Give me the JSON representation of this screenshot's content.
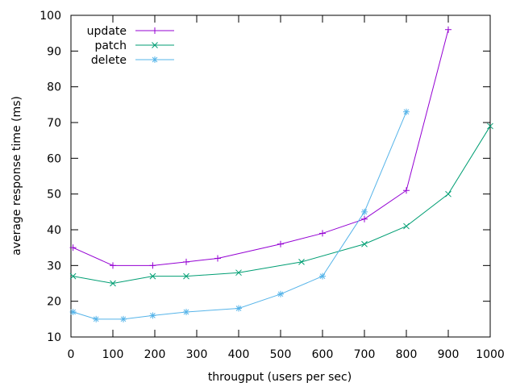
{
  "chart_data": {
    "type": "line",
    "title": "",
    "xlabel": "througput (users per sec)",
    "ylabel": "average response time (ms)",
    "xlim": [
      0,
      1000
    ],
    "ylim": [
      10,
      100
    ],
    "xticks": [
      0,
      100,
      200,
      300,
      400,
      500,
      600,
      700,
      800,
      900,
      1000
    ],
    "yticks": [
      10,
      20,
      30,
      40,
      50,
      60,
      70,
      80,
      90,
      100
    ],
    "grid": false,
    "legend_position": "top-left",
    "series": [
      {
        "name": "update",
        "color": "#9400d3",
        "marker": "plus",
        "x": [
          5,
          100,
          195,
          275,
          350,
          500,
          600,
          700,
          800,
          900
        ],
        "y": [
          35,
          30,
          30,
          31,
          32,
          36,
          39,
          43,
          51,
          96
        ]
      },
      {
        "name": "patch",
        "color": "#009e73",
        "marker": "cross",
        "x": [
          5,
          100,
          195,
          275,
          400,
          550,
          700,
          800,
          900,
          1000
        ],
        "y": [
          27,
          25,
          27,
          27,
          28,
          31,
          36,
          41,
          50,
          69
        ]
      },
      {
        "name": "delete",
        "color": "#56b4e9",
        "marker": "star",
        "x": [
          5,
          60,
          125,
          195,
          275,
          400,
          500,
          600,
          700,
          800
        ],
        "y": [
          17,
          15,
          15,
          16,
          17,
          18,
          22,
          27,
          45,
          73
        ]
      }
    ]
  }
}
